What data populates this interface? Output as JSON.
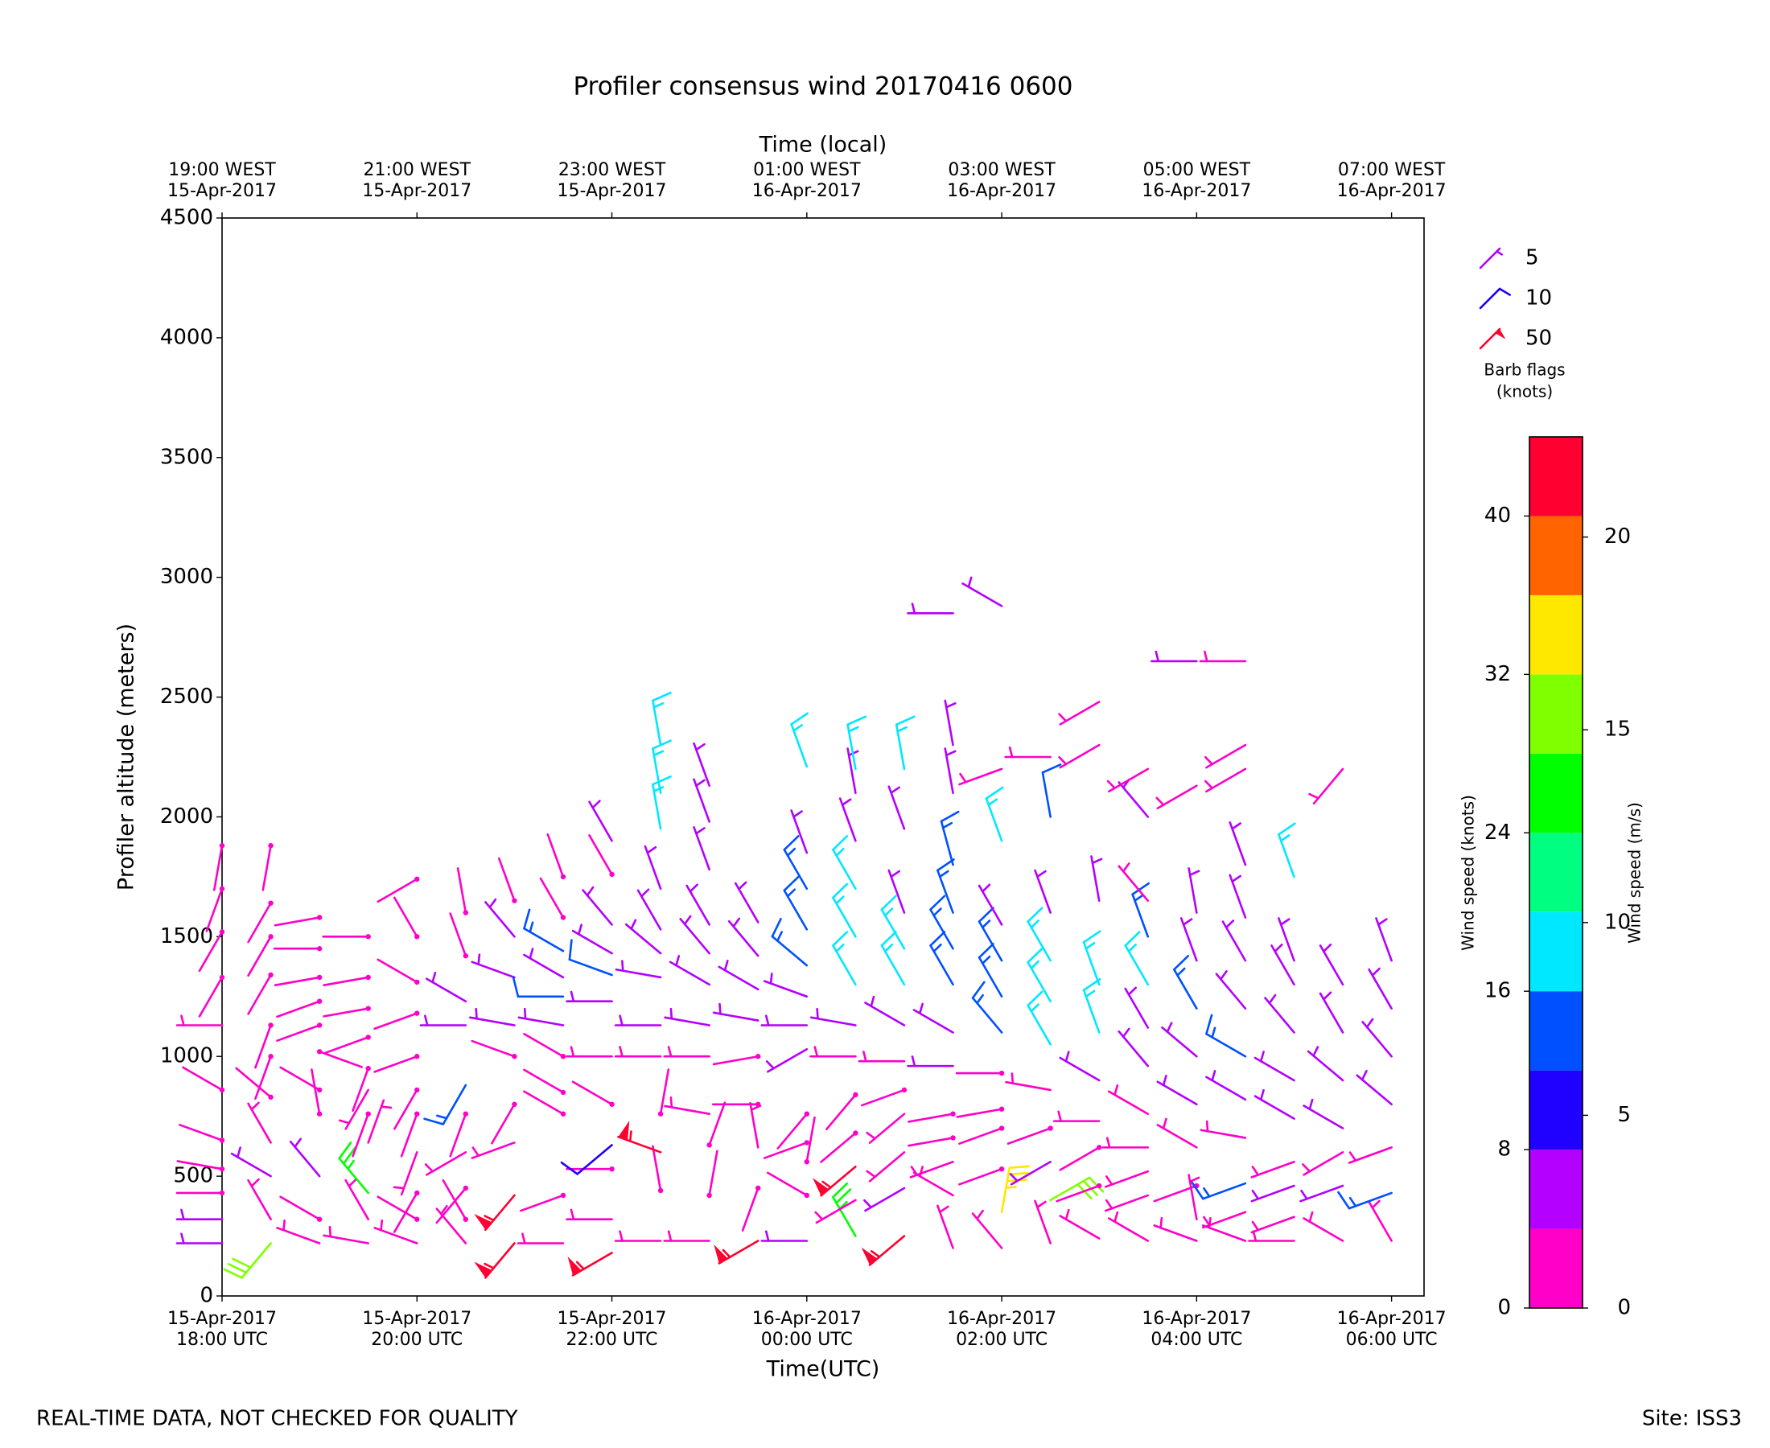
{
  "chart_data": {
    "type": "barbs",
    "title": "Profiler consensus wind 20170416 0600",
    "xlabel": "Time(UTC)",
    "x2label": "Time (local)",
    "ylabel": "Profiler altitude (meters)",
    "xlim": [
      "2017-04-15T18:00",
      "2017-04-16T06:20"
    ],
    "ylim": [
      0,
      4500
    ],
    "yticks": [
      0,
      500,
      1000,
      1500,
      2000,
      2500,
      3000,
      3500,
      4000,
      4500
    ],
    "xticks": [
      {
        "value": "2017-04-15T18:00",
        "label": [
          "15-Apr-2017",
          "18:00 UTC"
        ]
      },
      {
        "value": "2017-04-15T20:00",
        "label": [
          "15-Apr-2017",
          "20:00 UTC"
        ]
      },
      {
        "value": "2017-04-15T22:00",
        "label": [
          "15-Apr-2017",
          "22:00 UTC"
        ]
      },
      {
        "value": "2017-04-16T00:00",
        "label": [
          "16-Apr-2017",
          "00:00 UTC"
        ]
      },
      {
        "value": "2017-04-16T02:00",
        "label": [
          "16-Apr-2017",
          "02:00 UTC"
        ]
      },
      {
        "value": "2017-04-16T04:00",
        "label": [
          "16-Apr-2017",
          "04:00 UTC"
        ]
      },
      {
        "value": "2017-04-16T06:00",
        "label": [
          "16-Apr-2017",
          "06:00 UTC"
        ]
      }
    ],
    "x2ticks": [
      {
        "value": "2017-04-15T18:00",
        "label": [
          "19:00 WEST",
          "15-Apr-2017"
        ]
      },
      {
        "value": "2017-04-15T20:00",
        "label": [
          "21:00 WEST",
          "15-Apr-2017"
        ]
      },
      {
        "value": "2017-04-15T22:00",
        "label": [
          "23:00 WEST",
          "15-Apr-2017"
        ]
      },
      {
        "value": "2017-04-16T00:00",
        "label": [
          "01:00 WEST",
          "16-Apr-2017"
        ]
      },
      {
        "value": "2017-04-16T02:00",
        "label": [
          "03:00 WEST",
          "16-Apr-2017"
        ]
      },
      {
        "value": "2017-04-16T04:00",
        "label": [
          "05:00 WEST",
          "16-Apr-2017"
        ]
      },
      {
        "value": "2017-04-16T06:00",
        "label": [
          "07:00 WEST",
          "16-Apr-2017"
        ]
      }
    ],
    "profiles": [
      {
        "x": "2017-04-15T18:00",
        "altitude": [
          220,
          320,
          430,
          530,
          650,
          860,
          1130,
          1330,
          1520,
          1700,
          1880
        ],
        "speed": [
          6,
          6,
          2,
          2,
          2,
          2,
          3,
          2,
          2,
          2,
          2
        ],
        "direction": [
          270,
          270,
          270,
          280,
          290,
          300,
          270,
          210,
          210,
          200,
          190
        ]
      },
      {
        "x": "2017-04-15T18:30",
        "altitude": [
          220,
          320,
          500,
          640,
          830,
          1000,
          1130,
          1340,
          1500,
          1640,
          1880
        ],
        "speed": [
          30,
          3,
          6,
          3,
          2,
          2,
          2,
          2,
          2,
          2,
          2
        ],
        "direction": [
          220,
          330,
          300,
          330,
          310,
          200,
          200,
          210,
          210,
          210,
          190
        ]
      },
      {
        "x": "2017-04-15T19:00",
        "altitude": [
          220,
          320,
          500,
          760,
          860,
          1020,
          1130,
          1230,
          1330,
          1450,
          1580
        ],
        "speed": [
          3,
          2,
          6,
          2,
          2,
          2,
          2,
          2,
          2,
          2,
          2
        ],
        "direction": [
          290,
          300,
          320,
          350,
          300,
          110,
          250,
          250,
          260,
          270,
          260
        ]
      },
      {
        "x": "2017-04-15T19:30",
        "altitude": [
          220,
          320,
          430,
          640,
          760,
          860,
          950,
          1080,
          1200,
          1330,
          1500
        ],
        "speed": [
          3,
          3,
          26,
          3,
          2,
          3,
          2,
          2,
          2,
          2,
          2
        ],
        "direction": [
          280,
          330,
          320,
          20,
          200,
          210,
          200,
          250,
          260,
          260,
          270
        ]
      },
      {
        "x": "2017-04-15T20:00",
        "altitude": [
          220,
          320,
          430,
          600,
          760,
          860,
          1000,
          1180,
          1310,
          1500,
          1740
        ],
        "speed": [
          3,
          2,
          2,
          3,
          2,
          2,
          2,
          2,
          2,
          2,
          2
        ],
        "direction": [
          290,
          300,
          210,
          200,
          200,
          210,
          250,
          250,
          300,
          330,
          240
        ]
      },
      {
        "x": "2017-04-15T20:30",
        "altitude": [
          220,
          320,
          450,
          600,
          760,
          880,
          1130,
          1230,
          1420,
          1600
        ],
        "speed": [
          3,
          2,
          2,
          3,
          2,
          14,
          6,
          6,
          2,
          2
        ],
        "direction": [
          320,
          330,
          220,
          240,
          200,
          210,
          270,
          300,
          340,
          350
        ]
      },
      {
        "x": "2017-04-15T21:00",
        "altitude": [
          220,
          420,
          640,
          800,
          1000,
          1130,
          1330,
          1500,
          1650
        ],
        "speed": [
          55,
          55,
          3,
          2,
          2,
          6,
          6,
          6,
          2
        ],
        "direction": [
          220,
          220,
          250,
          210,
          290,
          280,
          290,
          320,
          340
        ]
      },
      {
        "x": "2017-04-15T21:30",
        "altitude": [
          220,
          420,
          760,
          850,
          1000,
          1130,
          1250,
          1330,
          1440,
          1580,
          1750
        ],
        "speed": [
          3,
          2,
          2,
          2,
          2,
          7,
          12,
          7,
          14,
          2,
          2
        ],
        "direction": [
          270,
          250,
          300,
          300,
          300,
          280,
          270,
          300,
          300,
          330,
          340
        ]
      },
      {
        "x": "2017-04-15T22:00",
        "altitude": [
          180,
          320,
          530,
          630,
          800,
          1000,
          1230,
          1340,
          1430,
          1550,
          1760,
          1900
        ],
        "speed": [
          55,
          3,
          2,
          8,
          2,
          3,
          7,
          12,
          7,
          7,
          2,
          7
        ],
        "direction": [
          240,
          270,
          270,
          230,
          300,
          270,
          270,
          290,
          300,
          320,
          330,
          330
        ]
      },
      {
        "x": "2017-04-15T22:30",
        "altitude": [
          230,
          440,
          600,
          760,
          1000,
          1130,
          1330,
          1430,
          1530,
          1700,
          1950,
          2100,
          2300
        ],
        "speed": [
          3,
          2,
          55,
          2,
          3,
          7,
          7,
          7,
          7,
          7,
          17,
          17,
          17
        ],
        "direction": [
          270,
          350,
          290,
          10,
          270,
          270,
          280,
          310,
          330,
          340,
          350,
          350,
          350
        ]
      },
      {
        "x": "2017-04-15T23:00",
        "altitude": [
          230,
          420,
          630,
          760,
          1000,
          1130,
          1300,
          1430,
          1550,
          1780,
          1980,
          2130
        ],
        "speed": [
          3,
          2,
          2,
          3,
          3,
          7,
          7,
          7,
          7,
          7,
          7,
          7
        ],
        "direction": [
          270,
          10,
          20,
          280,
          270,
          280,
          300,
          320,
          330,
          340,
          340,
          340
        ]
      },
      {
        "x": "2017-04-15T23:30",
        "altitude": [
          230,
          450,
          620,
          800,
          1000,
          1150,
          1280,
          1420,
          1560
        ],
        "speed": [
          55,
          2,
          3,
          2,
          2,
          7,
          7,
          7,
          7
        ],
        "direction": [
          240,
          200,
          350,
          270,
          260,
          280,
          300,
          320,
          330
        ]
      },
      {
        "x": "2017-04-16T00:00",
        "altitude": [
          230,
          420,
          560,
          640,
          760,
          1030,
          1130,
          1250,
          1380,
          1530,
          1700,
          1850,
          2210
        ],
        "speed": [
          7,
          2,
          2,
          2,
          2,
          7,
          7,
          7,
          14,
          14,
          14,
          7,
          17
        ],
        "direction": [
          270,
          300,
          10,
          250,
          220,
          240,
          270,
          290,
          310,
          330,
          330,
          340,
          340
        ]
      },
      {
        "x": "2017-04-16T00:30",
        "altitude": [
          250,
          400,
          540,
          680,
          840,
          1000,
          1130,
          1300,
          1500,
          1700,
          1900,
          2100,
          2200
        ],
        "speed": [
          24,
          3,
          55,
          2,
          2,
          3,
          7,
          17,
          17,
          17,
          7,
          7,
          17
        ],
        "direction": [
          330,
          240,
          230,
          230,
          220,
          270,
          280,
          330,
          330,
          330,
          340,
          350,
          350
        ]
      },
      {
        "x": "2017-04-16T01:00",
        "altitude": [
          250,
          450,
          600,
          760,
          860,
          980,
          1130,
          1300,
          1450,
          1600,
          1950,
          2200
        ],
        "speed": [
          55,
          5,
          3,
          3,
          2,
          3,
          7,
          17,
          17,
          7,
          7,
          17
        ],
        "direction": [
          230,
          240,
          230,
          230,
          250,
          270,
          300,
          330,
          330,
          340,
          340,
          350
        ]
      },
      {
        "x": "2017-04-16T01:30",
        "altitude": [
          200,
          420,
          560,
          660,
          760,
          960,
          1100,
          1300,
          1450,
          1600,
          1800,
          2100,
          2300,
          2850
        ],
        "speed": [
          3,
          3,
          3,
          2,
          2,
          7,
          7,
          14,
          14,
          14,
          14,
          7,
          7,
          7
        ],
        "direction": [
          340,
          300,
          250,
          260,
          260,
          270,
          300,
          330,
          330,
          340,
          345,
          350,
          350,
          270
        ]
      },
      {
        "x": "2017-04-16T02:00",
        "altitude": [
          200,
          350,
          530,
          700,
          780,
          930,
          1100,
          1250,
          1400,
          1550,
          1900,
          2200,
          2880
        ],
        "speed": [
          3,
          33,
          2,
          2,
          2,
          2,
          14,
          14,
          14,
          7,
          17,
          3,
          7
        ],
        "direction": [
          320,
          10,
          250,
          250,
          260,
          270,
          320,
          330,
          330,
          330,
          340,
          250,
          300
        ]
      },
      {
        "x": "2017-04-16T02:30",
        "altitude": [
          220,
          400,
          560,
          700,
          860,
          1050,
          1230,
          1400,
          1600,
          2000,
          2250
        ],
        "speed": [
          3,
          30,
          7,
          2,
          3,
          17,
          17,
          17,
          7,
          12,
          3
        ],
        "direction": [
          340,
          60,
          240,
          250,
          280,
          330,
          330,
          330,
          340,
          350,
          270
        ]
      },
      {
        "x": "2017-04-16T03:00",
        "altitude": [
          240,
          460,
          620,
          730,
          900,
          1100,
          1300,
          1650,
          2300,
          2480
        ],
        "speed": [
          3,
          2,
          2,
          3,
          7,
          17,
          17,
          7,
          3,
          3
        ],
        "direction": [
          300,
          250,
          240,
          270,
          300,
          340,
          340,
          350,
          240,
          240
        ]
      },
      {
        "x": "2017-04-16T03:30",
        "altitude": [
          230,
          420,
          520,
          620,
          760,
          960,
          1120,
          1300,
          1500,
          1650,
          2000,
          2200
        ],
        "speed": [
          3,
          3,
          3,
          3,
          3,
          7,
          7,
          17,
          14,
          3,
          7,
          3
        ],
        "direction": [
          300,
          250,
          250,
          270,
          300,
          320,
          330,
          330,
          340,
          320,
          320,
          240
        ]
      },
      {
        "x": "2017-04-16T04:00",
        "altitude": [
          230,
          320,
          460,
          620,
          800,
          1000,
          1200,
          1400,
          1600,
          2130,
          2650
        ],
        "speed": [
          3,
          3,
          2,
          3,
          7,
          7,
          14,
          7,
          7,
          3,
          7
        ],
        "direction": [
          290,
          350,
          250,
          300,
          300,
          310,
          330,
          340,
          350,
          240,
          270
        ]
      },
      {
        "x": "2017-04-16T04:30",
        "altitude": [
          230,
          350,
          470,
          660,
          820,
          1000,
          1200,
          1400,
          1580,
          1800,
          2200,
          2300,
          2650
        ],
        "speed": [
          3,
          3,
          14,
          3,
          7,
          14,
          7,
          7,
          7,
          7,
          3,
          3,
          3
        ],
        "direction": [
          290,
          250,
          250,
          280,
          300,
          300,
          320,
          330,
          340,
          340,
          240,
          240,
          270
        ]
      },
      {
        "x": "2017-04-16T05:00",
        "altitude": [
          230,
          330,
          460,
          560,
          740,
          900,
          1100,
          1300,
          1400,
          1750
        ],
        "speed": [
          3,
          3,
          7,
          3,
          7,
          7,
          7,
          7,
          7,
          17
        ],
        "direction": [
          270,
          250,
          250,
          250,
          300,
          300,
          320,
          330,
          340,
          340
        ]
      },
      {
        "x": "2017-04-16T05:30",
        "altitude": [
          230,
          460,
          600,
          700,
          900,
          1100,
          1300,
          2200
        ],
        "speed": [
          3,
          7,
          3,
          7,
          7,
          7,
          7,
          3
        ],
        "direction": [
          300,
          250,
          240,
          300,
          310,
          330,
          330,
          220
        ]
      },
      {
        "x": "2017-04-16T06:00",
        "altitude": [
          230,
          430,
          620,
          800,
          1000,
          1200,
          1400
        ],
        "speed": [
          3,
          14,
          3,
          7,
          7,
          7,
          7
        ],
        "direction": [
          330,
          250,
          250,
          310,
          320,
          330,
          340
        ]
      }
    ],
    "legend": {
      "title": [
        "Barb flags",
        "(knots)"
      ],
      "entries": [
        {
          "value": 5,
          "color": "#b400ff"
        },
        {
          "value": 10,
          "color": "#2000ff"
        },
        {
          "value": 50,
          "color": "#ff0030"
        }
      ]
    },
    "colorbar": {
      "label": "Wind speed (knots)",
      "label2": "Wind speed (m/s)",
      "bounds": [
        0,
        4,
        8,
        12,
        16,
        20,
        24,
        28,
        32,
        36,
        40,
        44
      ],
      "colors": [
        "#ff00c8",
        "#b400ff",
        "#2000ff",
        "#0050ff",
        "#00e8ff",
        "#00ff80",
        "#00ff00",
        "#80ff00",
        "#ffe800",
        "#ff6400",
        "#ff0030"
      ],
      "ticks": [
        0,
        8,
        16,
        24,
        32,
        40
      ],
      "ticks2": [
        0,
        5,
        10,
        15,
        20
      ],
      "lim2": [
        0,
        22.6
      ]
    }
  },
  "footer": {
    "note": "REAL-TIME DATA, NOT CHECKED FOR QUALITY",
    "site": "Site: ISS3"
  }
}
